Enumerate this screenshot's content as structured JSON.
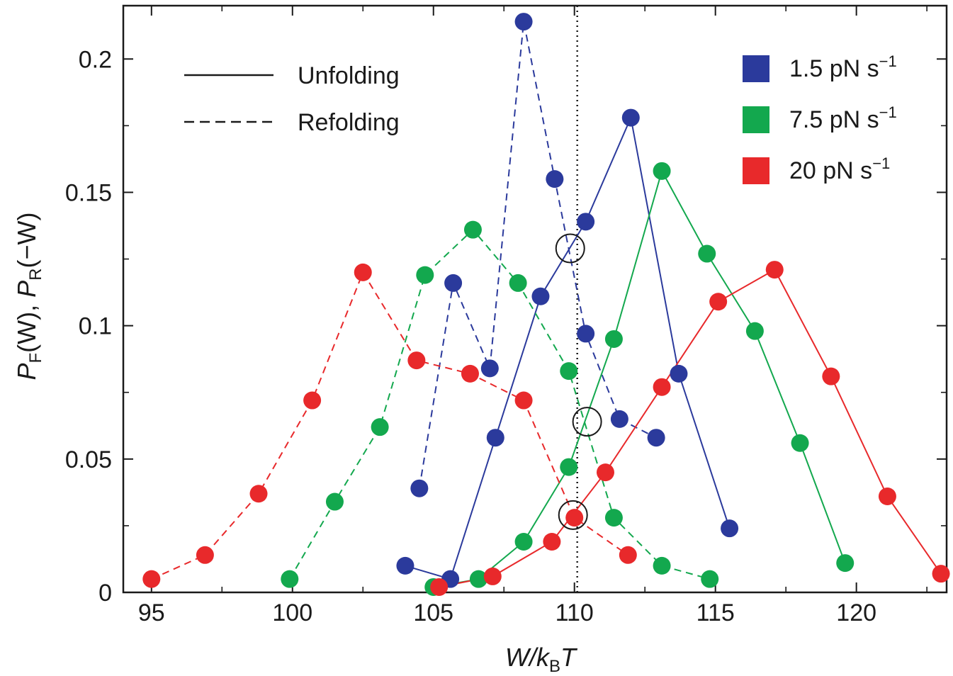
{
  "chart_data": {
    "type": "line",
    "xlabel": {
      "main": "W/k",
      "sub": "B",
      "tail": "T"
    },
    "ylabel": {
      "p1": "P",
      "s1": "F",
      "a1": "(W), ",
      "p2": "P",
      "s2": "R",
      "a2": "(−W)"
    },
    "xlim": [
      94.0,
      123.2
    ],
    "ylim": [
      0,
      0.22
    ],
    "x_ticks": [
      95,
      100,
      105,
      110,
      115,
      120
    ],
    "x_tick_labels": [
      "95",
      "100",
      "105",
      "110",
      "115",
      "120"
    ],
    "y_ticks": [
      0,
      0.05,
      0.1,
      0.15,
      0.2
    ],
    "y_tick_labels": [
      "0",
      "0.05",
      "0.1",
      "0.15",
      "0.2"
    ],
    "grid": false,
    "vline_x": 110.1,
    "style_legend": [
      {
        "label": "Unfolding",
        "dash": "solid"
      },
      {
        "label": "Refolding",
        "dash": "dashed"
      }
    ],
    "color_legend": [
      {
        "label": "1.5 pN s",
        "sup": "−1",
        "color": "#2b3a9c"
      },
      {
        "label": "7.5 pN s",
        "sup": "−1",
        "color": "#13a84e"
      },
      {
        "label": "20 pN s",
        "sup": "−1",
        "color": "#e8292b"
      }
    ],
    "series": [
      {
        "rate": "1.5 pN s−1",
        "kind": "Unfolding",
        "color": "#2b3a9c",
        "dashed": false,
        "x": [
          104.0,
          105.6,
          107.2,
          108.8,
          110.4,
          112.0,
          113.7,
          115.5
        ],
        "y": [
          0.01,
          0.005,
          0.058,
          0.111,
          0.139,
          0.178,
          0.082,
          0.024
        ]
      },
      {
        "rate": "1.5 pN s−1",
        "kind": "Refolding",
        "color": "#2b3a9c",
        "dashed": false,
        "x": [
          104.5,
          105.7,
          107.0,
          108.2,
          109.3,
          110.4,
          111.6,
          112.9
        ],
        "y": [
          0.039,
          0.116,
          0.084,
          0.214,
          0.155,
          0.097,
          0.065,
          0.058
        ],
        "dashed_override": true
      },
      {
        "rate": "7.5 pN s−1",
        "kind": "Unfolding",
        "color": "#13a84e",
        "dashed": false,
        "x": [
          105.0,
          106.6,
          108.2,
          109.8,
          111.4,
          113.1,
          114.7,
          116.4,
          118.0,
          119.6
        ],
        "y": [
          0.002,
          0.005,
          0.019,
          0.047,
          0.095,
          0.158,
          0.127,
          0.098,
          0.056,
          0.011
        ]
      },
      {
        "rate": "7.5 pN s−1",
        "kind": "Refolding",
        "color": "#13a84e",
        "dashed": true,
        "x": [
          99.9,
          101.5,
          103.1,
          104.7,
          106.4,
          108.0,
          109.8,
          111.4,
          113.1,
          114.8
        ],
        "y": [
          0.005,
          0.034,
          0.062,
          0.119,
          0.136,
          0.116,
          0.083,
          0.028,
          0.01,
          0.005
        ]
      },
      {
        "rate": "20 pN s−1",
        "kind": "Unfolding",
        "color": "#e8292b",
        "dashed": false,
        "x": [
          105.2,
          107.1,
          109.2,
          111.1,
          113.1,
          115.1,
          117.1,
          119.1,
          121.1,
          123.0
        ],
        "y": [
          0.002,
          0.006,
          0.019,
          0.045,
          0.077,
          0.109,
          0.121,
          0.081,
          0.036,
          0.007
        ]
      },
      {
        "rate": "20 pN s−1",
        "kind": "Refolding",
        "color": "#e8292b",
        "dashed": true,
        "x": [
          95.0,
          96.9,
          98.8,
          100.7,
          102.5,
          104.4,
          106.3,
          108.2,
          110.0,
          111.9
        ],
        "y": [
          0.005,
          0.014,
          0.037,
          0.072,
          0.12,
          0.087,
          0.082,
          0.072,
          0.028,
          0.014
        ]
      }
    ],
    "crossing_markers": [
      {
        "x": 109.85,
        "y": 0.129
      },
      {
        "x": 110.45,
        "y": 0.064
      },
      {
        "x": 109.95,
        "y": 0.029
      }
    ]
  }
}
